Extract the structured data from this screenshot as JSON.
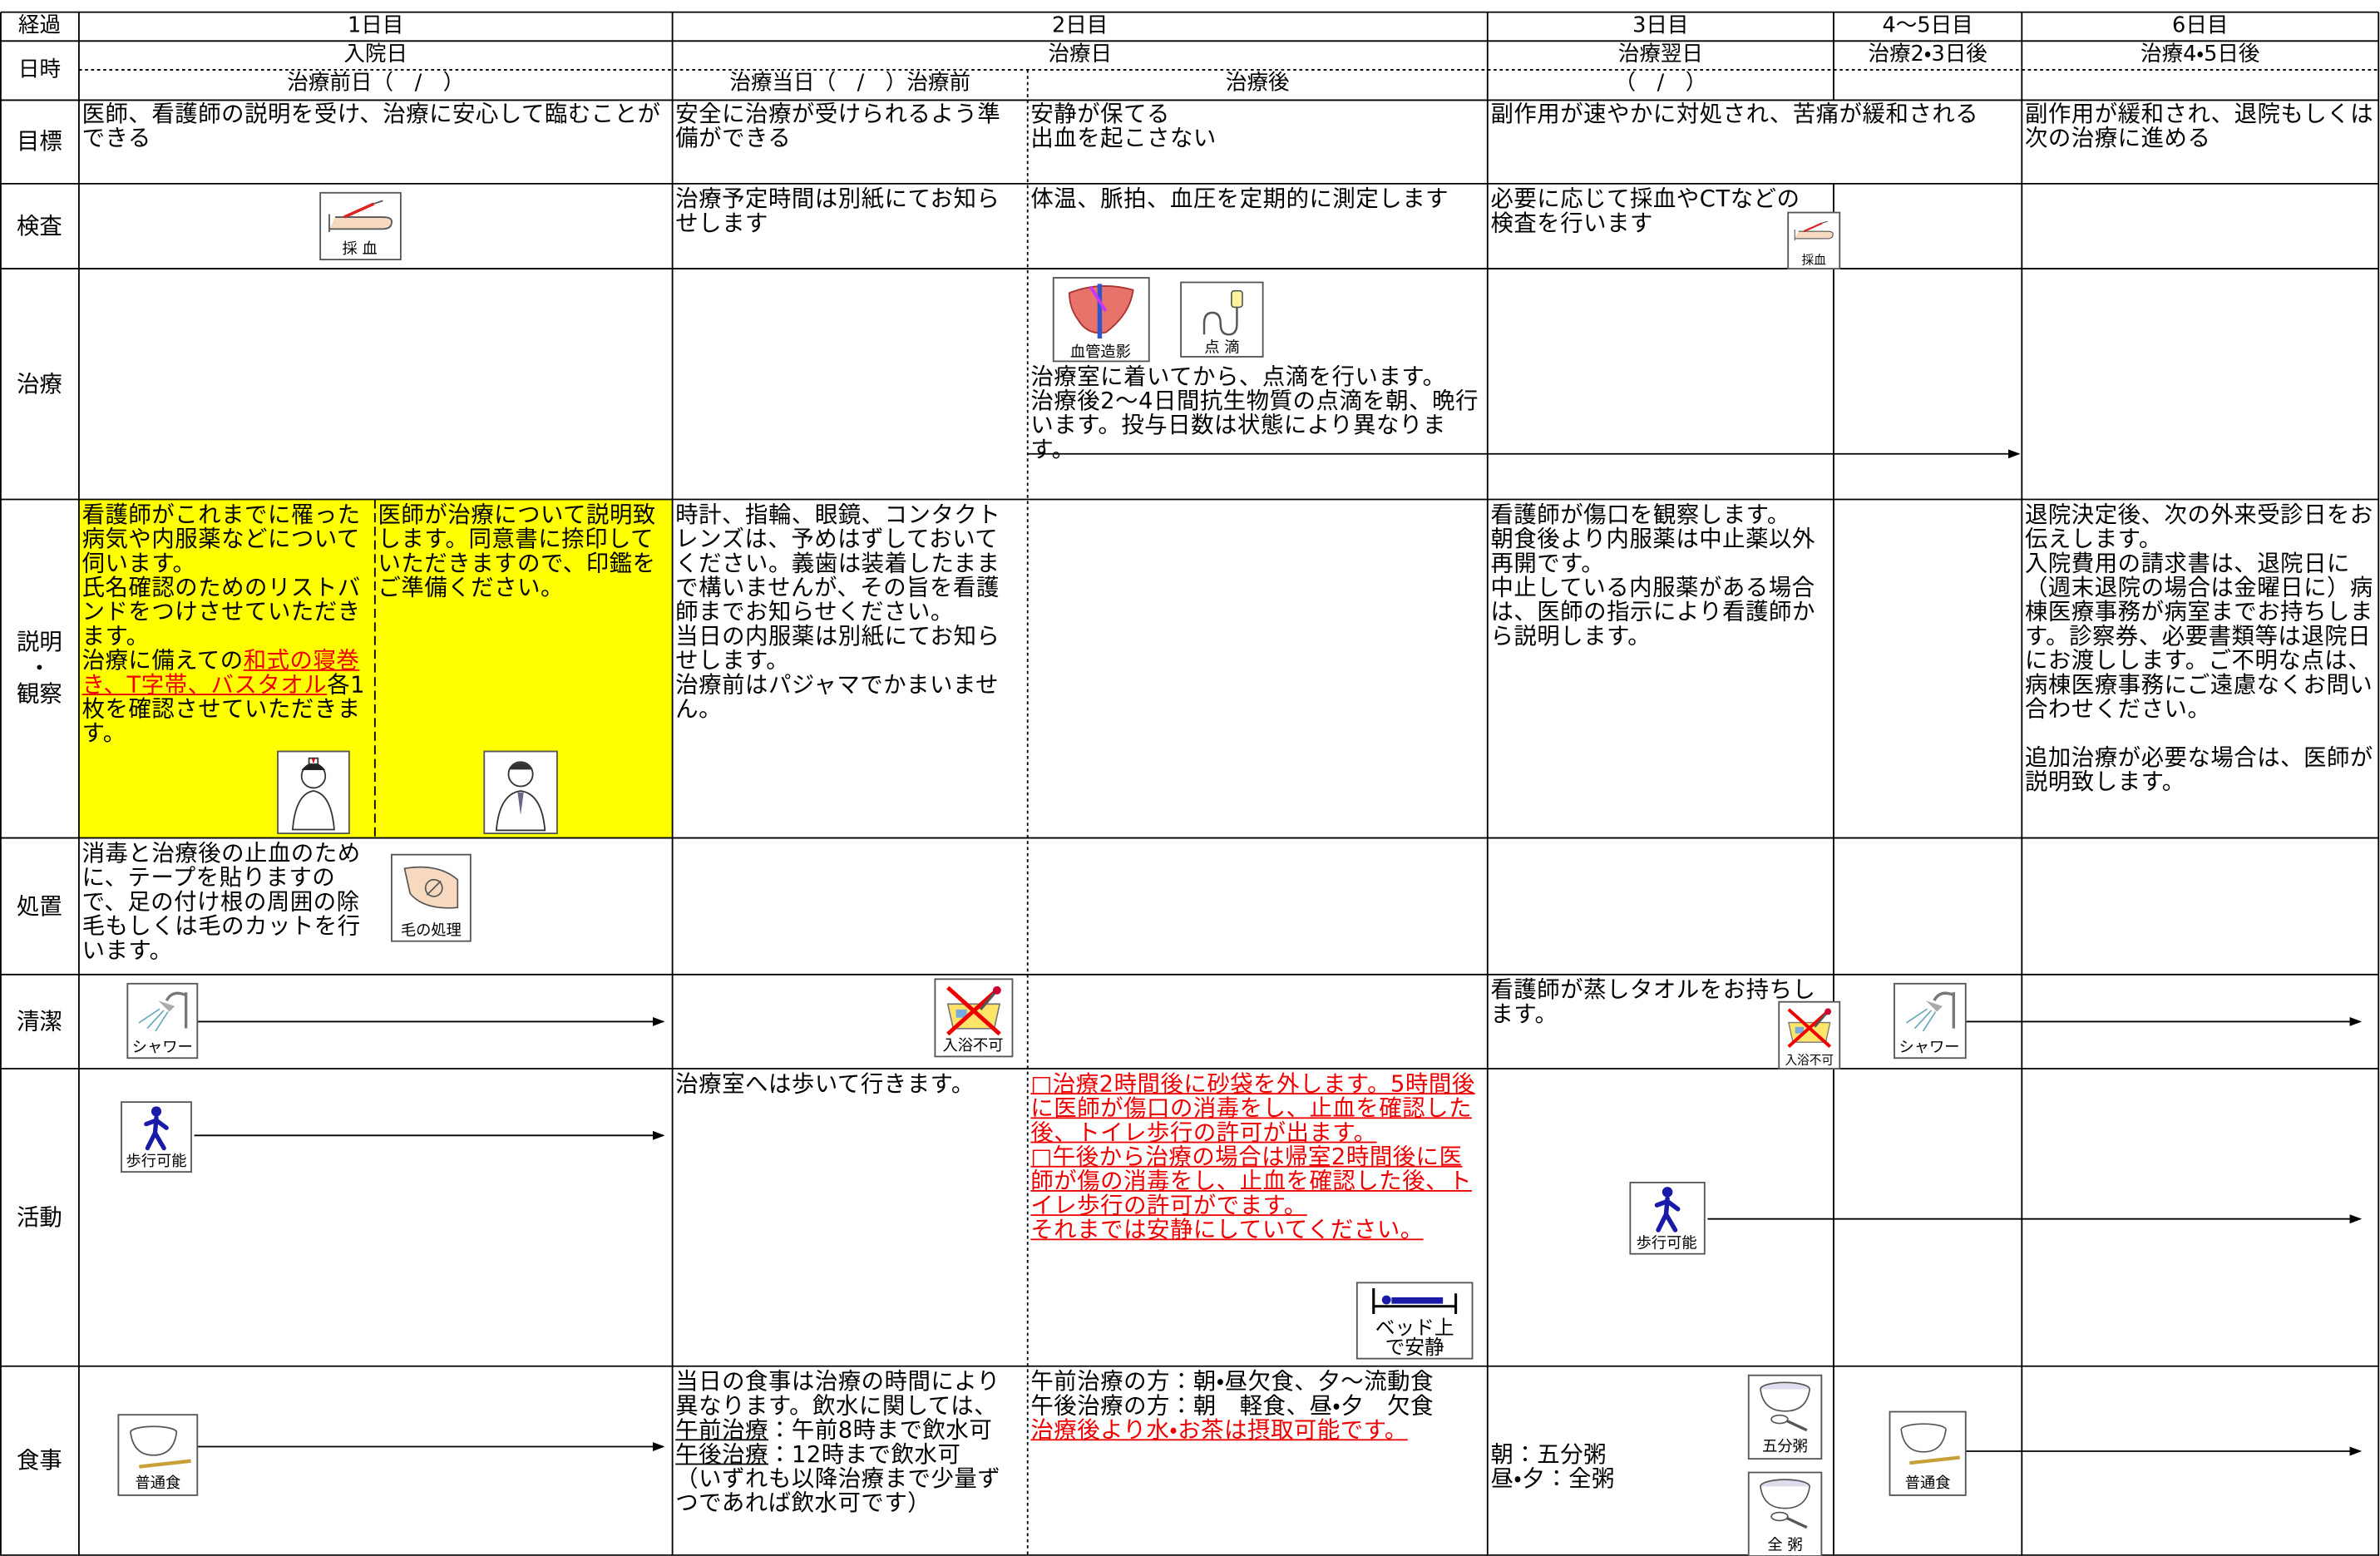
{
  "header": {
    "progress_label": "経過",
    "datetime_label": "日時",
    "days": [
      "1日目",
      "2日目",
      "3日目",
      "4〜5日目",
      "6日目"
    ],
    "day_names": [
      "入院日",
      "治療日",
      "治療翌日",
      "治療2・3日後",
      "治療4・5日後"
    ],
    "sub_headers": [
      "治療前日（　/　）",
      "治療当日（　/　）治療前",
      "治療後",
      "（　/　）"
    ]
  },
  "rows": {
    "goal": {
      "label": "目標",
      "day1": [
        "医師、看護師の説明を受け、治療に安心して臨むことができる"
      ],
      "day2_before": [
        "安全に治療が受けられるよう準備ができる"
      ],
      "day2_after": [
        "安静が保てる",
        "出血を起こさない"
      ],
      "day3": [
        "副作用が速やかに対処され、苦痛が緩和される"
      ],
      "day6": [
        "副作用が緩和され、退院もしくは次の治療に進める"
      ]
    },
    "exam": {
      "label": "検査",
      "day2_before": [
        "治療予定時間は別紙にてお知らせします"
      ],
      "day2_after": [
        "体温、脈拍、血圧を定期的に測定します"
      ],
      "day3": [
        "必要に応じて採血やCTなどの検査を行います"
      ],
      "icons": [
        "採 血",
        "採血"
      ]
    },
    "treatment": {
      "label": "治療",
      "day2_after": [
        "治療室に着いてから、点滴を行います。",
        "治療後2〜4日間抗生物質の点滴を朝、晩行います。投与日数は状態により異なります。"
      ],
      "icons": [
        "血管造影",
        "点 滴"
      ]
    },
    "explanation": {
      "label": [
        "説明",
        "・",
        "観察"
      ],
      "day1_nurse": [
        "看護師がこれまでに罹った病気や内服薬などについて伺います。",
        "氏名確認のためのリストバンドをつけさせていただきます。",
        [
          "治療に備えての",
          {
            "text": "和式の寝巻き、T字帯、バスタオル",
            "style": "red"
          },
          "各1枚を確認させていただきます。"
        ]
      ],
      "day1_doctor": [
        "医師が治療について説明致します。同意書に捺印していただきますので、印鑑をご準備ください。"
      ],
      "day2_before": [
        "時計、指輪、眼鏡、コンタクトレンズは、予めはずしておいてください。義歯は装着したままで構いませんが、その旨を看護師までお知らせください。",
        "当日の内服薬は別紙にてお知らせします。",
        "治療前はパジャマでかまいません。"
      ],
      "day3": [
        "看護師が傷口を観察します。",
        "朝食後より内服薬は中止薬以外再開です。",
        "中止している内服薬がある場合は、医師の指示により看護師から説明します。"
      ],
      "day6": [
        "退院決定後、次の外来受診日をお伝えします。",
        "入院費用の請求書は、退院日に（週末退院の場合は金曜日に）病棟医療事務が病室までお持ちします。診察券、必要書類等は退院日にお渡しします。ご不明な点は、病棟医療事務にご遠慮なくお問い合わせください。",
        "追加治療が必要な場合は、医師が説明致します。"
      ]
    },
    "procedure": {
      "label": "処置",
      "day1": [
        "消毒と治療後の止血のために、テープを貼りますので、足の付け根の周囲の除毛もしくは毛のカットを行います。"
      ],
      "icons": [
        "毛の処理"
      ]
    },
    "cleanliness": {
      "label": "清潔",
      "day3": [
        "看護師が蒸しタオルをお持ちします。"
      ],
      "icons": [
        "シャワー",
        "入浴不可",
        "入浴不可",
        "シャワー"
      ]
    },
    "activity": {
      "label": "活動",
      "day2_before": [
        "治療室へは歩いて行きます。"
      ],
      "day2_after": [
        [
          {
            "text": "□治療2時間後に砂袋を外します。5時間後に医師が傷口の消毒をし、止血を確認した後、トイレ歩行の許可が出ます。",
            "style": "red"
          }
        ],
        [
          {
            "text": "□午後から治療の場合は帰室2時間後に医師が傷の消毒をし、止血を確認した後、トイレ歩行の許可がでます。",
            "style": "red"
          }
        ],
        [
          {
            "text": "それまでは安静にしていてください。",
            "style": "red"
          }
        ]
      ],
      "icons": [
        "歩行可能",
        "歩行可能"
      ],
      "bed_icon": [
        "ベッド上",
        "で安静"
      ]
    },
    "meal": {
      "label": "食事",
      "day2_before": [
        "当日の食事は治療の時間により異なります。飲水に関しては、",
        [
          {
            "text": "午前治療",
            "style": "underline"
          },
          "：午前8時まで飲水可"
        ],
        [
          {
            "text": "午後治療",
            "style": "underline"
          },
          "：12時まで飲水可"
        ],
        "（いずれも以降治療まで少量ずつであれば飲水可です）"
      ],
      "day2_after": [
        "午前治療の方：朝・昼欠食、夕〜流動食",
        "午後治療の方：朝　軽食、昼・夕　欠食",
        [
          {
            "text": "治療後より水・お茶は摂取可能です。",
            "style": "red"
          }
        ]
      ],
      "day3": [
        "朝：五分粥",
        "昼・夕：全粥"
      ],
      "icons": [
        "普通食",
        "五分粥",
        "全 粥",
        "普通食"
      ]
    }
  }
}
